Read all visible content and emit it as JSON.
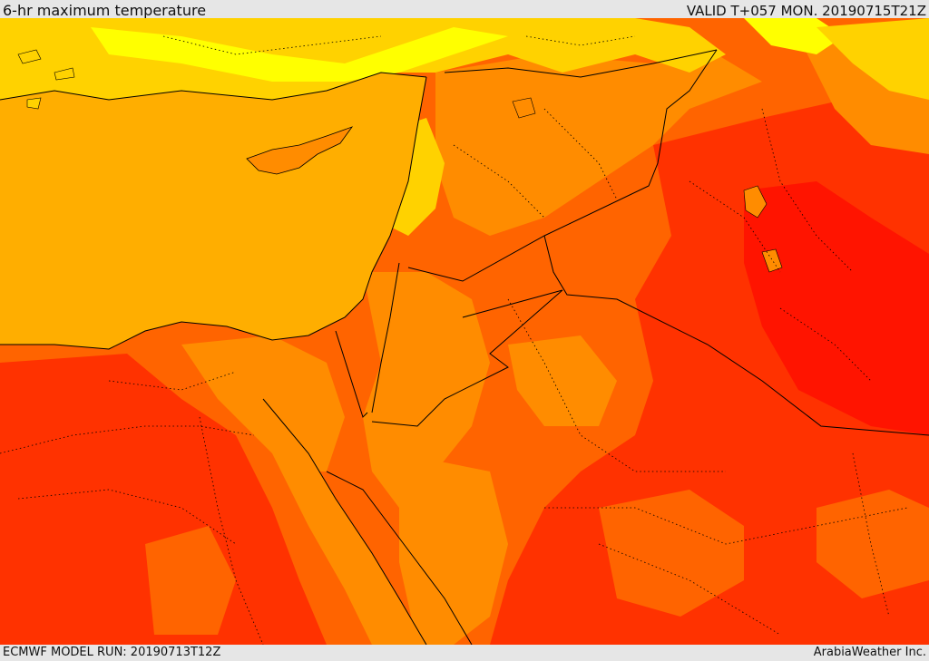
{
  "header": {
    "title": "6-hr maximum temperature",
    "valid": "VALID T+057 MON. 20190715T21Z"
  },
  "footer": {
    "model_run": "ECMWF MODEL RUN: 20190713T12Z",
    "credit": "ArabiaWeather Inc."
  },
  "colors": {
    "sea": "#ffae00",
    "level_1": "#ffff00",
    "level_2": "#ffd200",
    "level_3": "#ffae00",
    "level_4": "#ff8c00",
    "level_5": "#ff6400",
    "level_6": "#ff3200",
    "level_7": "#ff1400",
    "borders": "#000000",
    "frame": "#e6e6e6"
  }
}
